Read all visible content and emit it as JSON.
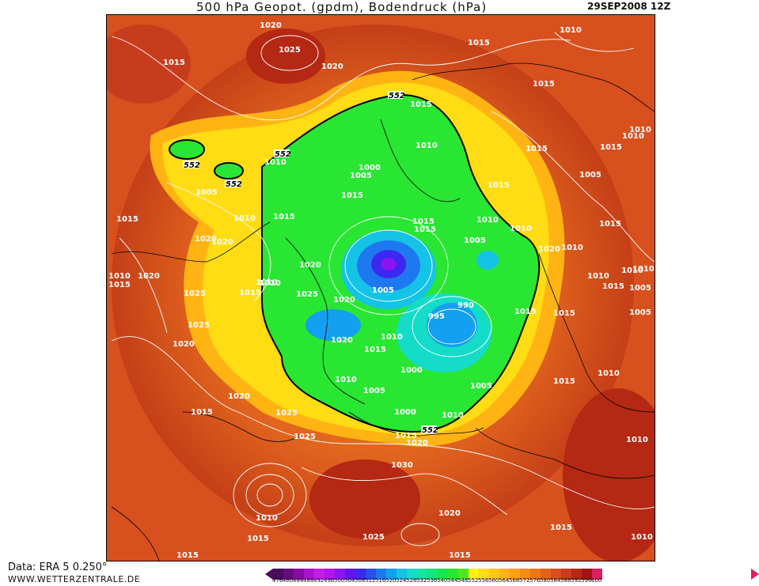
{
  "header": {
    "title": "500 hPa Geopot. (gpdm), Bodendruck (hPa)",
    "date": "29SEP2008 12Z"
  },
  "footer": {
    "data_source": "Data: ERA 5 0.250°",
    "website": "WWW.WETTERZENTRALE.DE"
  },
  "colorbar": {
    "labels": [
      "476",
      "480",
      "484",
      "488",
      "492",
      "496",
      "500",
      "504",
      "508",
      "512",
      "516",
      "520",
      "524",
      "528",
      "532",
      "536",
      "540",
      "544",
      "548",
      "552",
      "556",
      "560",
      "564",
      "568",
      "572",
      "576",
      "580",
      "584",
      "588",
      "592",
      "596",
      "600"
    ],
    "colors": [
      "#4b0a5e",
      "#6a0a80",
      "#8a0aa6",
      "#a814c8",
      "#c31ee6",
      "#b414f0",
      "#8c14f0",
      "#6414f0",
      "#3c28f0",
      "#2850f0",
      "#1e78f0",
      "#14a0f0",
      "#14c3e6",
      "#14dcc8",
      "#14e6a0",
      "#14e678",
      "#14e650",
      "#28e632",
      "#50e61e",
      "#fff014",
      "#ffdc14",
      "#ffc814",
      "#ffb414",
      "#ffa014",
      "#f58c14",
      "#eb7814",
      "#e1641e",
      "#d7501e",
      "#c83c1e",
      "#b42814",
      "#a01414",
      "#dc1e64"
    ]
  },
  "map": {
    "contour_552_label": "552",
    "isobars": [
      {
        "id": "iso-1",
        "text": "1020"
      },
      {
        "id": "iso-2",
        "text": "1025"
      },
      {
        "id": "iso-3",
        "text": "1015"
      },
      {
        "id": "iso-4",
        "text": "1020"
      },
      {
        "id": "iso-5",
        "text": "1015"
      },
      {
        "id": "iso-6",
        "text": "1010"
      },
      {
        "id": "iso-7",
        "text": "1015"
      },
      {
        "id": "iso-8",
        "text": "1010"
      },
      {
        "id": "iso-9",
        "text": "1015"
      },
      {
        "id": "iso-10",
        "text": "1010"
      },
      {
        "id": "iso-11",
        "text": "1015"
      },
      {
        "id": "iso-12",
        "text": "1015"
      },
      {
        "id": "iso-13",
        "text": "1010"
      },
      {
        "id": "iso-14",
        "text": "1020"
      },
      {
        "id": "iso-15",
        "text": "1005"
      },
      {
        "id": "iso-16",
        "text": "1000"
      },
      {
        "id": "iso-17",
        "text": "1005"
      },
      {
        "id": "iso-18",
        "text": "1015"
      },
      {
        "id": "iso-19",
        "text": "1015"
      },
      {
        "id": "iso-20",
        "text": "1015"
      },
      {
        "id": "iso-21",
        "text": "1010"
      },
      {
        "id": "iso-22",
        "text": "1005"
      },
      {
        "id": "iso-23",
        "text": "1015"
      },
      {
        "id": "iso-24",
        "text": "1020"
      },
      {
        "id": "iso-25",
        "text": "1010"
      },
      {
        "id": "iso-26",
        "text": "1015"
      },
      {
        "id": "iso-27",
        "text": "1010"
      },
      {
        "id": "iso-28",
        "text": "1015"
      },
      {
        "id": "iso-29",
        "text": "1005"
      },
      {
        "id": "iso-30",
        "text": "1010"
      },
      {
        "id": "iso-31",
        "text": "1020"
      },
      {
        "id": "iso-32",
        "text": "1005"
      },
      {
        "id": "iso-33",
        "text": "990"
      },
      {
        "id": "iso-34",
        "text": "995"
      },
      {
        "id": "iso-35",
        "text": "1010"
      },
      {
        "id": "iso-36",
        "text": "1015"
      },
      {
        "id": "iso-37",
        "text": "1020"
      },
      {
        "id": "iso-38",
        "text": "1025"
      },
      {
        "id": "iso-39",
        "text": "1015"
      },
      {
        "id": "iso-40",
        "text": "1010"
      },
      {
        "id": "iso-41",
        "text": "1020"
      },
      {
        "id": "iso-42",
        "text": "1010"
      },
      {
        "id": "iso-43",
        "text": "1015"
      },
      {
        "id": "iso-44",
        "text": "1010"
      },
      {
        "id": "iso-45",
        "text": "1020"
      },
      {
        "id": "iso-46",
        "text": "1020"
      },
      {
        "id": "iso-47",
        "text": "1000"
      },
      {
        "id": "iso-48",
        "text": "1005"
      },
      {
        "id": "iso-49",
        "text": "1010"
      },
      {
        "id": "iso-50",
        "text": "1000"
      },
      {
        "id": "iso-51",
        "text": "1005"
      },
      {
        "id": "iso-52",
        "text": "1010"
      },
      {
        "id": "iso-53",
        "text": "1015"
      },
      {
        "id": "iso-54",
        "text": "1025"
      },
      {
        "id": "iso-55",
        "text": "1020"
      },
      {
        "id": "iso-56",
        "text": "1015"
      },
      {
        "id": "iso-57",
        "text": "1025"
      },
      {
        "id": "iso-58",
        "text": "1030"
      },
      {
        "id": "iso-59",
        "text": "1020"
      },
      {
        "id": "iso-60",
        "text": "1010"
      },
      {
        "id": "iso-61",
        "text": "1015"
      },
      {
        "id": "iso-62",
        "text": "1025"
      },
      {
        "id": "iso-63",
        "text": "1015"
      },
      {
        "id": "iso-64",
        "text": "1015"
      },
      {
        "id": "iso-65",
        "text": "1010"
      },
      {
        "id": "iso-66",
        "text": "1015"
      },
      {
        "id": "iso-67",
        "text": "1010"
      },
      {
        "id": "iso-68",
        "text": "1020"
      },
      {
        "id": "iso-69",
        "text": "1025"
      },
      {
        "id": "iso-70",
        "text": "1015"
      },
      {
        "id": "iso-71",
        "text": "1025"
      },
      {
        "id": "iso-72",
        "text": "1020"
      },
      {
        "id": "iso-73",
        "text": "1015"
      },
      {
        "id": "iso-74",
        "text": "1010"
      },
      {
        "id": "iso-75",
        "text": "1015"
      },
      {
        "id": "iso-76",
        "text": "1010"
      },
      {
        "id": "iso-77",
        "text": "1005"
      },
      {
        "id": "iso-78",
        "text": "1010"
      },
      {
        "id": "iso-79",
        "text": "1015"
      },
      {
        "id": "iso-80",
        "text": "1010"
      },
      {
        "id": "iso-81",
        "text": "1005"
      },
      {
        "id": "iso-82",
        "text": "1010"
      },
      {
        "id": "iso-83",
        "text": "1015"
      }
    ]
  }
}
